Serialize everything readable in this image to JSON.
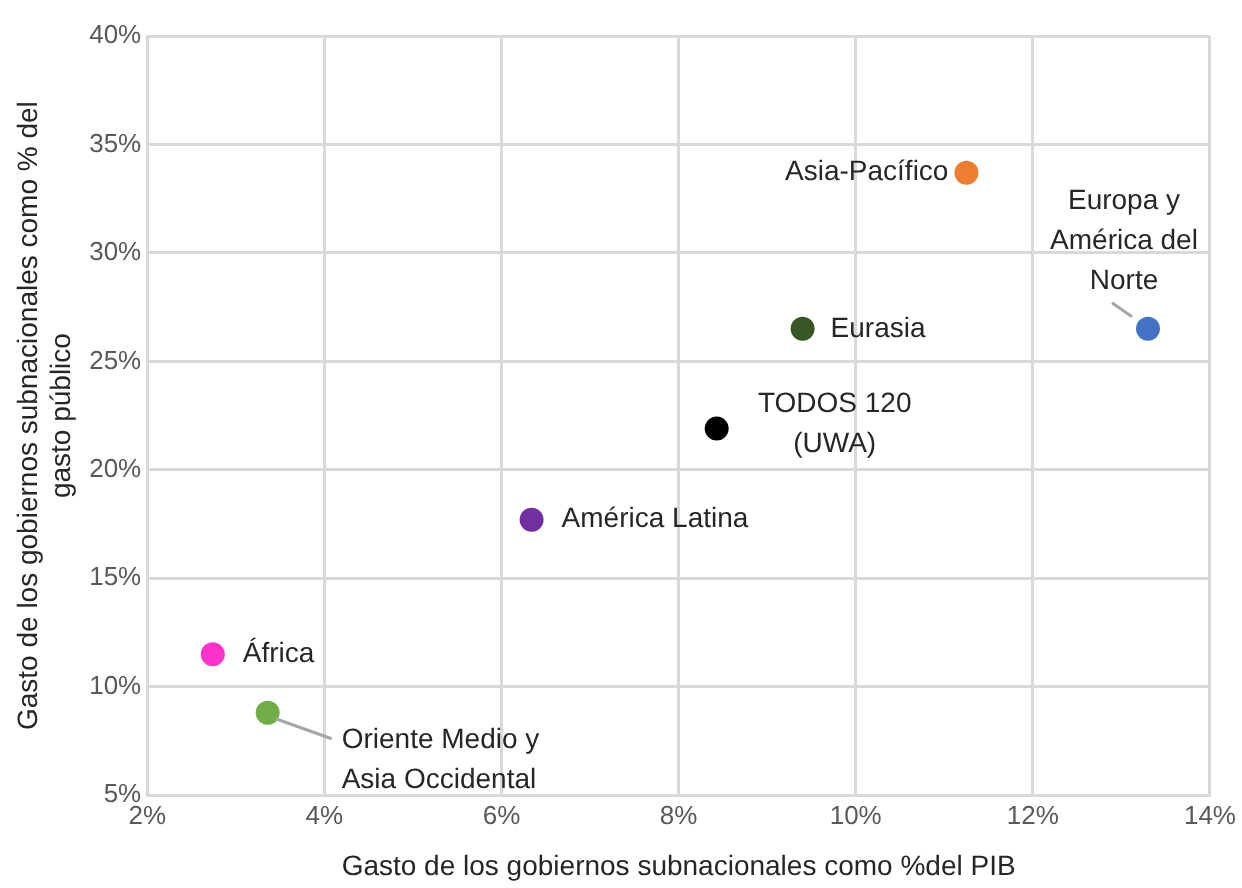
{
  "chart_data": {
    "type": "scatter",
    "xlabel": "Gasto de los gobiernos subnacionales como %del PIB",
    "ylabel": "Gasto de los gobiernos subnacionales como % del gasto público",
    "xlim": [
      2,
      14
    ],
    "xticks": [
      {
        "value": 2,
        "label": "2%"
      },
      {
        "value": 4,
        "label": "4%"
      },
      {
        "value": 6,
        "label": "6%"
      },
      {
        "value": 8,
        "label": "8%"
      },
      {
        "value": 10,
        "label": "10%"
      },
      {
        "value": 12,
        "label": "12%"
      },
      {
        "value": 14,
        "label": "14%"
      }
    ],
    "ylim": [
      5,
      40
    ],
    "yticks": [
      {
        "value": 5,
        "label": "5%"
      },
      {
        "value": 10,
        "label": "10%"
      },
      {
        "value": 15,
        "label": "15%"
      },
      {
        "value": 20,
        "label": "20%"
      },
      {
        "value": 25,
        "label": "25%"
      },
      {
        "value": 30,
        "label": "30%"
      },
      {
        "value": 35,
        "label": "35%"
      },
      {
        "value": 40,
        "label": "40%"
      }
    ],
    "grid": true,
    "legend": false,
    "marker": "circle",
    "series": [
      {
        "name": "Asia-Pacífico",
        "color": "#ed7d31",
        "x": [
          11.25
        ],
        "values": [
          33.7
        ]
      },
      {
        "name": "Europa y América del Norte",
        "color": "#4472c4",
        "x": [
          13.3
        ],
        "values": [
          26.5
        ]
      },
      {
        "name": "Eurasia",
        "color": "#375623",
        "x": [
          9.4
        ],
        "values": [
          26.5
        ]
      },
      {
        "name": "TODOS 120 (UWA)",
        "color": "#000000",
        "x": [
          8.43
        ],
        "values": [
          21.9
        ]
      },
      {
        "name": "América Latina",
        "color": "#7030a0",
        "x": [
          6.34
        ],
        "values": [
          17.7
        ]
      },
      {
        "name": "África",
        "color": "#ff33cc",
        "x": [
          2.74
        ],
        "values": [
          11.5
        ]
      },
      {
        "name": "Oriente Medio y Asia Occidental",
        "color": "#70ad47",
        "x": [
          3.36
        ],
        "values": [
          8.8
        ]
      }
    ]
  }
}
